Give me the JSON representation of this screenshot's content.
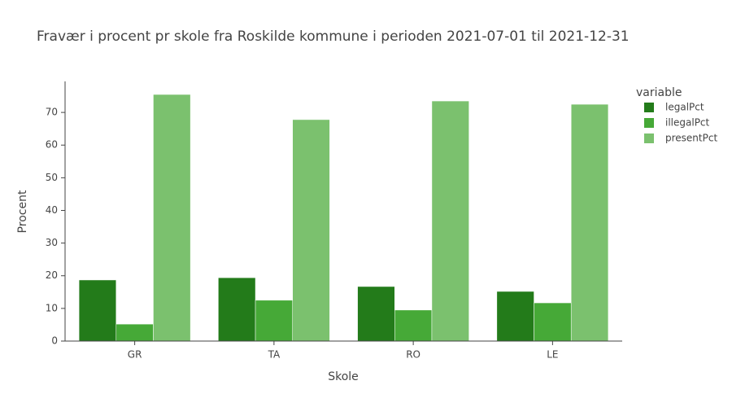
{
  "chart_data": {
    "type": "bar",
    "title": "Fravær i procent pr skole fra Roskilde kommune i perioden 2021-07-01 til 2021-12-31",
    "x_label": "Skole",
    "y_label": "Procent",
    "legend_title": "variable",
    "categories": [
      "GR",
      "TA",
      "RO",
      "LE"
    ],
    "series": [
      {
        "name": "legalPct",
        "color": "#237b1a",
        "values": [
          18.7,
          19.4,
          16.7,
          15.2
        ]
      },
      {
        "name": "illegalPct",
        "color": "#46a937",
        "values": [
          5.2,
          12.5,
          9.5,
          11.7
        ]
      },
      {
        "name": "presentPct",
        "color": "#7bc16e",
        "values": [
          75.5,
          67.8,
          73.5,
          72.5
        ]
      }
    ],
    "ylim": [
      0,
      79.5
    ],
    "yticks": [
      0,
      10,
      20,
      30,
      40,
      50,
      60,
      70
    ],
    "grid": false,
    "legend": "right"
  }
}
